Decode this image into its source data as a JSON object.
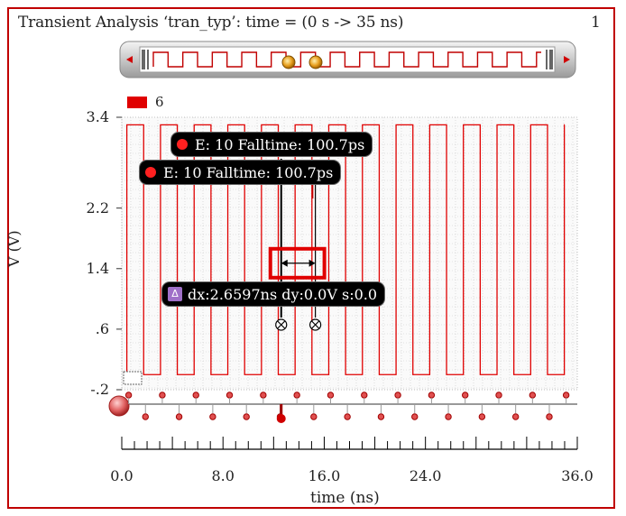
{
  "window": {
    "title": "Transient Analysis ‘tran_typ’: time = (0 s -> 35 ns)",
    "page_number": "1"
  },
  "markers": {
    "fall_label_1": "E: 10 Falltime: 100.7ps",
    "fall_label_2": "E: 10 Falltime: 100.7ps",
    "delta_label": "dx:2.6597ns dy:0.0V s:0.0",
    "delta_icon": "delta-icon"
  },
  "colors": {
    "signal": "#e00000",
    "highlight": "#e00000",
    "badge_bg": "#000000",
    "grid": "#c8c8c8"
  },
  "chart_data": {
    "type": "line",
    "title": "Transient Analysis ‘tran_typ’: time = (0 s -> 35 ns)",
    "xlabel": "time (ns)",
    "ylabel": "V (V)",
    "xlim": [
      0,
      36
    ],
    "ylim": [
      -0.2,
      3.4
    ],
    "yticks": [
      3.4,
      2.2,
      1.4,
      0.6,
      -0.2
    ],
    "ytick_labels": [
      "3.4",
      "2.2",
      "1.4",
      ".6",
      "-.2"
    ],
    "xticks": [
      0,
      8,
      16,
      24,
      36
    ],
    "xtick_labels": [
      "0.0",
      "8.0",
      "16.0",
      "24.0",
      "36.0"
    ],
    "grid": true,
    "legend": {
      "position": "top-left",
      "entries": [
        "6"
      ]
    },
    "series": [
      {
        "name": "6",
        "color": "#e00000",
        "waveform": "square",
        "v_low": 0.0,
        "v_high": 3.3,
        "period_ns": 2.6597,
        "start_ns": 0.4,
        "end_ns": 35
      }
    ],
    "annotations": [
      {
        "type": "falltime",
        "x_ns": 12.6,
        "text": "E: 10 Falltime: 100.7ps"
      },
      {
        "type": "falltime",
        "x_ns": 15.3,
        "text": "E: 10 Falltime: 100.7ps"
      },
      {
        "type": "delta",
        "x1_ns": 12.6,
        "x2_ns": 15.3,
        "y_V": 1.4,
        "text": "dx:2.6597ns dy:0.0V s:0.0"
      }
    ]
  }
}
